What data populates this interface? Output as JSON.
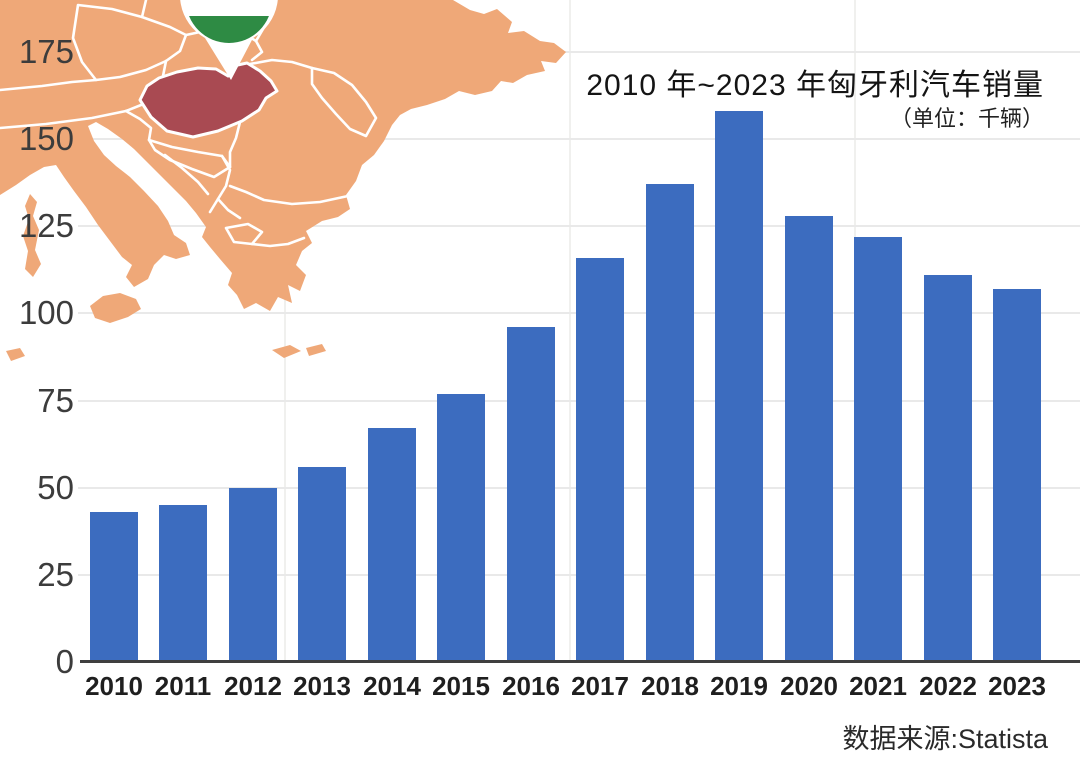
{
  "header": {
    "title": "2010 年~2023 年匈牙利汽车销量",
    "subtitle": "（单位：千辆）"
  },
  "footer": {
    "source_label": "数据来源:Statista"
  },
  "map": {
    "highlight_region": "hungary",
    "pin": "hungary-flag-pin",
    "colors": {
      "land": "#efa878",
      "highlight": "#a94a52",
      "border": "#ffffff",
      "pin_flag_red": "#c8313e",
      "pin_flag_white": "#ffffff",
      "pin_flag_green": "#2e8b44"
    }
  },
  "chart_data": {
    "type": "bar",
    "title": "2010 年~2023 年匈牙利汽车销量",
    "unit_note": "（单位：千辆）",
    "categories": [
      "2010",
      "2011",
      "2012",
      "2013",
      "2014",
      "2015",
      "2016",
      "2017",
      "2018",
      "2019",
      "2020",
      "2021",
      "2022",
      "2023"
    ],
    "values": [
      43,
      45,
      50,
      56,
      67,
      77,
      96,
      116,
      137,
      158,
      128,
      122,
      111,
      107
    ],
    "xlabel": "",
    "ylabel": "",
    "ylim": [
      0,
      185
    ],
    "yticks": [
      0,
      25,
      50,
      75,
      100,
      125,
      150,
      175
    ],
    "grid": true,
    "legend": "none",
    "bar_color": "#3c6cbf",
    "source": "数据来源:Statista"
  },
  "colors": {
    "bar": "#3c6cbf",
    "axis_line": "#3f3f3f",
    "grid_line": "#e9e9e9",
    "tick_text": "#3c3c3c",
    "label_text": "#1f1f1f"
  }
}
